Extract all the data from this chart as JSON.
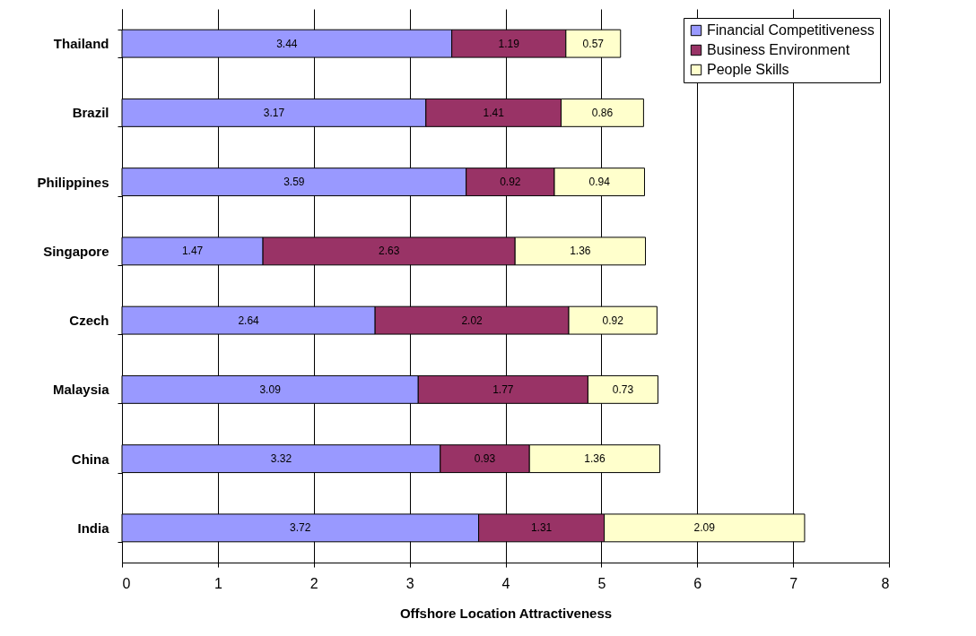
{
  "chart_data": {
    "type": "bar",
    "orientation": "horizontal",
    "stacked": true,
    "xlabel": "Offshore Location Attractiveness",
    "categories": [
      "Thailand",
      "Brazil",
      "Philippines",
      "Singapore",
      "Czech",
      "Malaysia",
      "China",
      "India"
    ],
    "series": [
      {
        "name": "Financial Competitiveness",
        "color": "#9999ff",
        "values": [
          3.44,
          3.17,
          3.59,
          1.47,
          2.64,
          3.09,
          3.32,
          3.72
        ]
      },
      {
        "name": "Business Environment",
        "color": "#993366",
        "values": [
          1.19,
          1.41,
          0.92,
          2.63,
          2.02,
          1.77,
          0.93,
          1.31
        ]
      },
      {
        "name": "People Skills",
        "color": "#ffffcc",
        "values": [
          0.57,
          0.86,
          0.94,
          1.36,
          0.92,
          0.73,
          1.36,
          2.09
        ]
      }
    ],
    "xlim": [
      0,
      8
    ],
    "xticks": [
      0,
      1,
      2,
      3,
      4,
      5,
      6,
      7,
      8
    ],
    "grid": "x",
    "legend": "top right",
    "data_labels": true
  }
}
